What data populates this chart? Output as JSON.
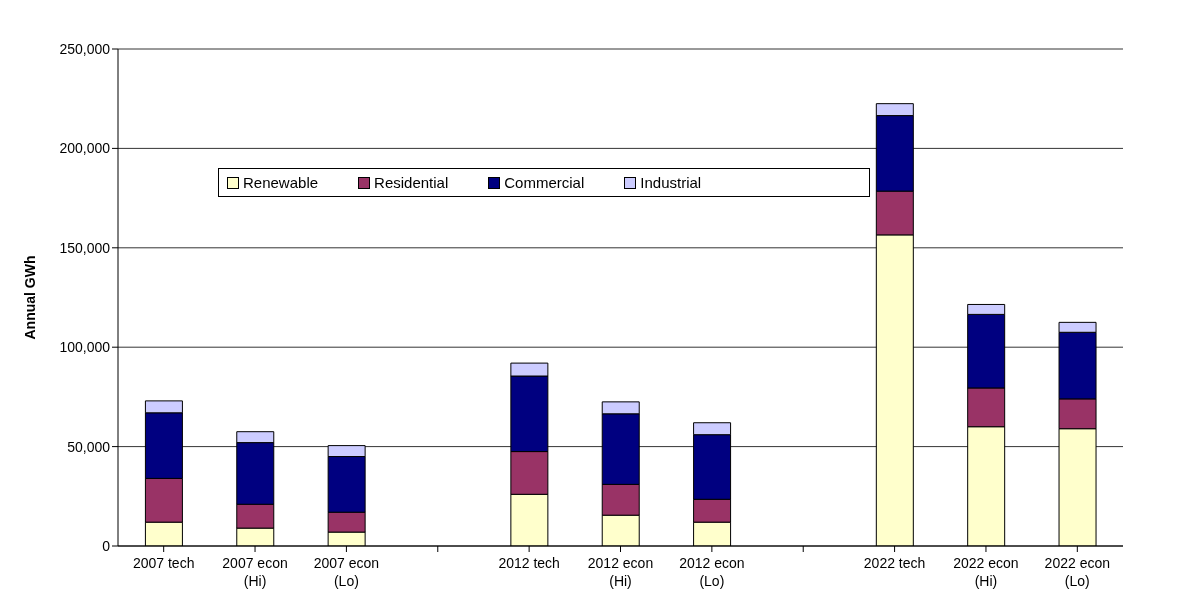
{
  "chart_data": {
    "type": "bar",
    "stacked": true,
    "ylabel": "Annual GWh",
    "categories": [
      "2007 tech",
      "2007 econ (Hi)",
      "2007 econ (Lo)",
      null,
      "2012 tech",
      "2012 econ (Hi)",
      "2012 econ (Lo)",
      null,
      "2022 tech",
      "2022 econ (Hi)",
      "2022 econ (Lo)"
    ],
    "series": [
      {
        "name": "Renewable",
        "color": "#ffffcc",
        "values": [
          12000,
          9000,
          7000,
          null,
          26000,
          15500,
          12000,
          null,
          156500,
          60000,
          59000
        ]
      },
      {
        "name": "Residential",
        "color": "#993366",
        "values": [
          22000,
          12000,
          10000,
          null,
          21500,
          15500,
          11500,
          null,
          22000,
          19500,
          15000
        ]
      },
      {
        "name": "Commercial",
        "color": "#000080",
        "values": [
          33000,
          31000,
          28000,
          null,
          38000,
          35500,
          32500,
          null,
          38000,
          37000,
          33500
        ]
      },
      {
        "name": "Industrial",
        "color": "#ccccff",
        "values": [
          6000,
          5500,
          5500,
          null,
          6500,
          6000,
          6000,
          null,
          6000,
          5000,
          5000
        ]
      }
    ],
    "ylim": [
      0,
      250000
    ],
    "yticks": [
      0,
      {
        "value": 50000,
        "label": "50,000"
      },
      {
        "value": 100000,
        "label": "100,000"
      },
      {
        "value": 150000,
        "label": "150,000"
      },
      {
        "value": 200000,
        "label": "200,000"
      },
      {
        "value": 250000,
        "label": "250,000"
      }
    ],
    "grid": "y",
    "legend": "top left"
  }
}
